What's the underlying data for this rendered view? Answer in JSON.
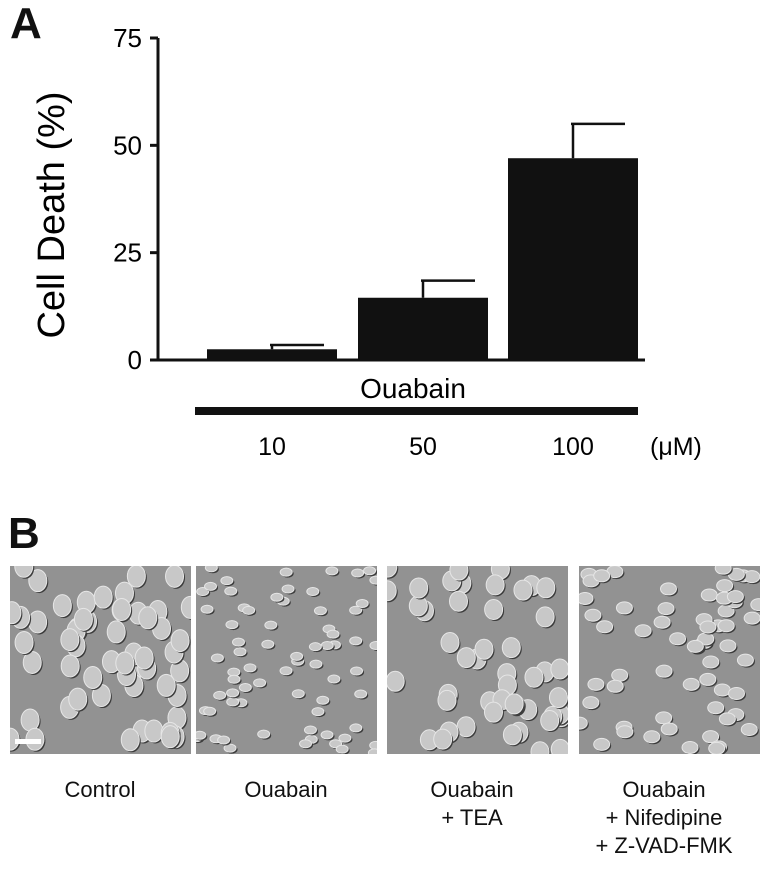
{
  "panel_a_letter": "A",
  "panel_b_letter": "B",
  "chart_data": {
    "type": "bar",
    "title": "",
    "ylabel": "Cell Death (%)",
    "xlabel": "Ouabain",
    "unit_label": "(μM)",
    "ylim": [
      0,
      75
    ],
    "yticks": [
      0,
      25,
      50,
      75
    ],
    "categories": [
      "10",
      "50",
      "100"
    ],
    "values": [
      2.5,
      14.5,
      47
    ],
    "errors": [
      1,
      4,
      8
    ],
    "bar_color": "#111111",
    "grid": false
  },
  "micrographs": [
    {
      "caption": [
        "Control"
      ]
    },
    {
      "caption": [
        "Ouabain"
      ]
    },
    {
      "caption": [
        "Ouabain",
        "+ TEA"
      ]
    },
    {
      "caption": [
        "Ouabain",
        "+ Nifedipine",
        "+ Z-VAD-FMK"
      ]
    }
  ]
}
